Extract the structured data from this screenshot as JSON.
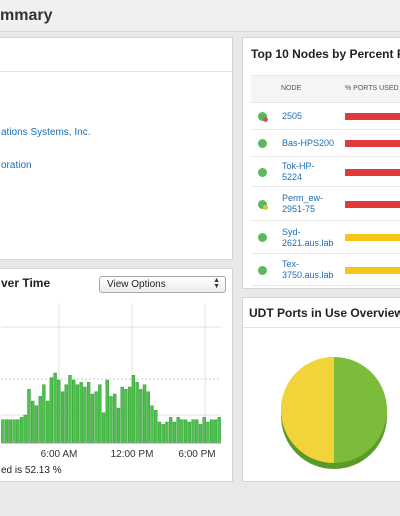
{
  "page": {
    "title": "mmary"
  },
  "details": {
    "lines": [
      "ations Systems, Inc.",
      "oration"
    ]
  },
  "top10": {
    "title": "Top 10 Nodes by Percent Po",
    "columns": {
      "node": "NODE",
      "ports_used": "% PORTS USED"
    },
    "rows": [
      {
        "node": "2505",
        "status": "warning",
        "bar_color": "#e03a3a"
      },
      {
        "node": "Bas-HPS200",
        "status": "up",
        "bar_color": "#e03a3a"
      },
      {
        "node": "Tok-HP-\n5224",
        "status": "up",
        "bar_color": "#e03a3a"
      },
      {
        "node": "Perm_ew-\n2951-75",
        "status": "minor",
        "bar_color": "#e03a3a"
      },
      {
        "node": "Syd-\n2621.aus.lab",
        "status": "up",
        "bar_color": "#f5c518"
      },
      {
        "node": "Tex-\n3750.aus.lab",
        "status": "up",
        "bar_color": "#f5c518"
      }
    ]
  },
  "over_time": {
    "title": "ver Time",
    "view_options": "View Options",
    "summary": "ed is 52.13 %"
  },
  "udt": {
    "title": "UDT Ports in Use Overview"
  },
  "chart_data": {
    "type": "bar",
    "x_tick_labels": [
      "6:00 AM",
      "12:00 PM",
      "6:00 PM"
    ],
    "series": [
      {
        "values": [
          10,
          10,
          10,
          10,
          10,
          11,
          12,
          23,
          18,
          16,
          20,
          25,
          18,
          28,
          30,
          27,
          22,
          25,
          29,
          27,
          25,
          26,
          24,
          26,
          21,
          22,
          25,
          13,
          27,
          20,
          21,
          15,
          24,
          23,
          24,
          29,
          26,
          23,
          25,
          22,
          16,
          14,
          9,
          8,
          9,
          11,
          9,
          11,
          10,
          10,
          9,
          10,
          10,
          8,
          11,
          9,
          10,
          10,
          11
        ]
      }
    ],
    "colors": {
      "bar": "#4cc24c",
      "bar_edge": "#2a8a2a"
    }
  }
}
